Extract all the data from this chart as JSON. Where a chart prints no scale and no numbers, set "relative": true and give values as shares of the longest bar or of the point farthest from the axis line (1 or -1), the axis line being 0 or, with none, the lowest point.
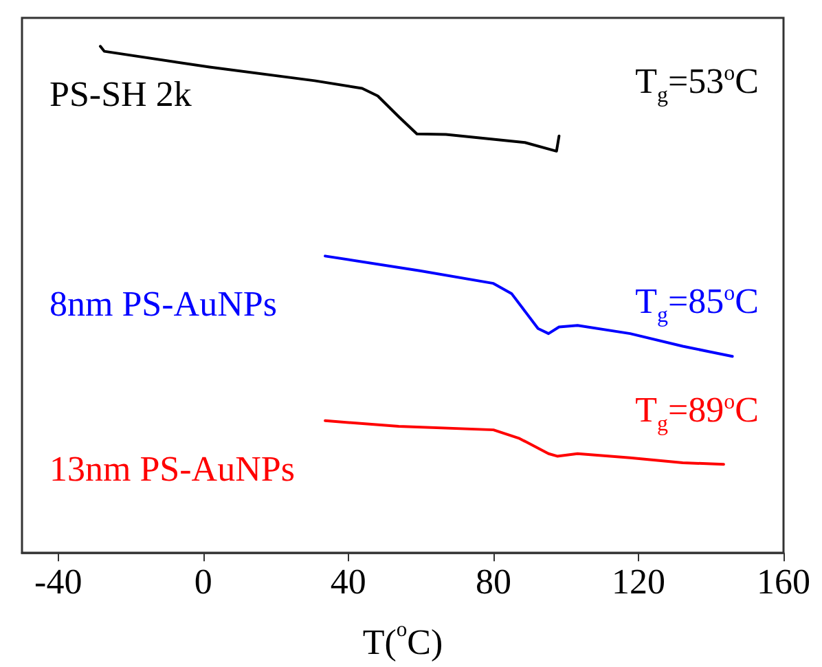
{
  "chart_data": {
    "type": "line",
    "relative": true,
    "xlabel": "T($^{o}$C)",
    "x": [
      -28.4,
      -27.3,
      1.7,
      30.7,
      43.8,
      48.1,
      53.9,
      58.9,
      66.9,
      88.7,
      97.4,
      98.1
    ],
    "xlim": [
      -50,
      160
    ],
    "xticks": [
      -40,
      0,
      40,
      80,
      120,
      160
    ],
    "grid": false,
    "legend": false,
    "marker": "none",
    "line_style": "solid",
    "series": [
      {
        "name": "PS-SH 2k",
        "color": "#000000",
        "values": [
          1.0,
          0.99,
          0.959,
          0.932,
          0.917,
          0.902,
          0.861,
          0.827,
          0.826,
          0.81,
          0.793,
          0.823
        ]
      },
      {
        "name": "8nm PS-AuNPs",
        "color": "#0000ff",
        "x": [
          33.6,
          59.7,
          80.0,
          85.0,
          92.3,
          95.2,
          98.1,
          103.2,
          117.7,
          132.2,
          145.9
        ],
        "values": [
          0.586,
          0.557,
          0.532,
          0.512,
          0.443,
          0.433,
          0.446,
          0.449,
          0.433,
          0.408,
          0.388
        ]
      },
      {
        "name": "13nm PS-AuNPs",
        "color": "#ff0000",
        "x": [
          33.6,
          53.9,
          80.0,
          87.2,
          95.2,
          97.6,
          103.2,
          117.7,
          132.2,
          143.5
        ],
        "values": [
          0.261,
          0.25,
          0.243,
          0.226,
          0.196,
          0.191,
          0.196,
          0.188,
          0.178,
          0.175
        ]
      }
    ],
    "annotations": [
      "T$_{g}$=53$^{o}$C",
      "T$_{g}$=85$^{o}$C",
      "T$_{g}$=89$^{o}$C"
    ]
  }
}
